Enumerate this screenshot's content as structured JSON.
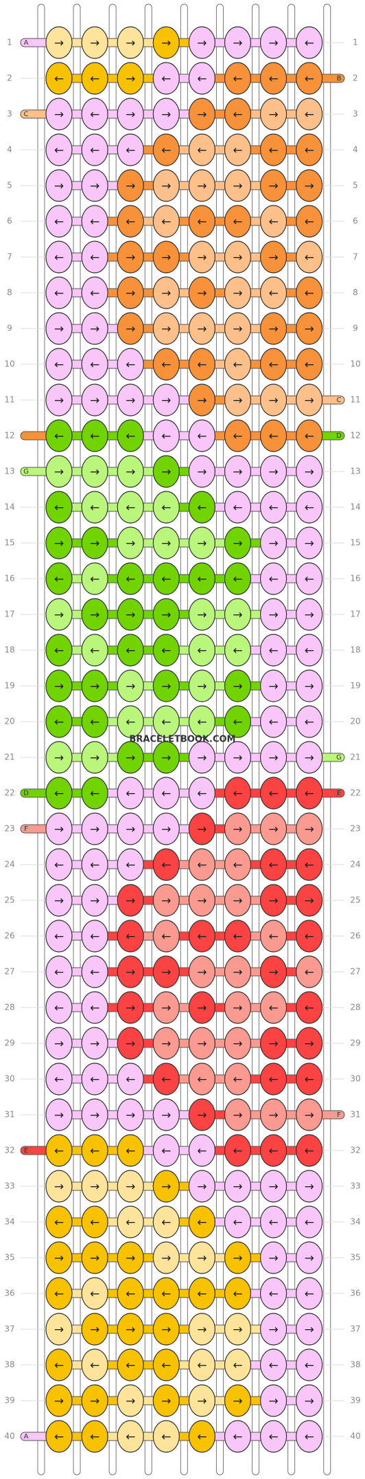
{
  "palette": {
    "p": "#f9c6f9",
    "do": "#f7923a",
    "lo": "#fdc08b",
    "dy": "#f9c200",
    "ly": "#fde49a",
    "dg": "#71d300",
    "lg": "#baf57c",
    "dr": "#fb4343",
    "lr": "#fb9a90"
  },
  "watermark": "BRACELETBOOK.COM",
  "tags": [
    {
      "row": 1,
      "side": "left",
      "letter": "A",
      "color": "p"
    },
    {
      "row": 3,
      "side": "left",
      "letter": "C",
      "color": "lo"
    },
    {
      "row": 12,
      "side": "left",
      "color": "do"
    },
    {
      "row": 13,
      "side": "left",
      "letter": "G",
      "color": "lg"
    },
    {
      "row": 22,
      "side": "left",
      "letter": "D",
      "color": "dg"
    },
    {
      "row": 23,
      "side": "left",
      "letter": "F",
      "color": "lr"
    },
    {
      "row": 32,
      "side": "left",
      "letter": "E",
      "color": "dr"
    },
    {
      "row": 40,
      "side": "left",
      "letter": "A",
      "color": "p"
    },
    {
      "row": 2,
      "side": "right",
      "letter": "B",
      "color": "do"
    },
    {
      "row": 11,
      "side": "right",
      "letter": "C",
      "color": "lo"
    },
    {
      "row": 12,
      "side": "right",
      "letter": "D",
      "color": "dg"
    },
    {
      "row": 21,
      "side": "right",
      "letter": "G",
      "color": "lg"
    },
    {
      "row": 22,
      "side": "right",
      "letter": "E",
      "color": "dr"
    },
    {
      "row": 31,
      "side": "right",
      "letter": "F",
      "color": "lr"
    }
  ],
  "rows": [
    {
      "label": "1",
      "colors": [
        "ly",
        "ly",
        "ly",
        "dy",
        "p",
        "p",
        "p",
        "p"
      ],
      "arrows": [
        "→",
        "→",
        "→",
        "→",
        "→",
        "→",
        "→",
        "←"
      ]
    },
    {
      "label": "2",
      "colors": [
        "dy",
        "dy",
        "dy",
        "p",
        "p",
        "do",
        "do",
        "do"
      ],
      "arrows": [
        "←",
        "←",
        "→",
        "←",
        "←",
        "←",
        "←",
        "←"
      ]
    },
    {
      "label": "3",
      "colors": [
        "p",
        "p",
        "p",
        "p",
        "do",
        "do",
        "lo",
        "lo"
      ],
      "arrows": [
        "→",
        "←",
        "→",
        "→",
        "→",
        "←",
        "→",
        "←"
      ]
    },
    {
      "label": "4",
      "colors": [
        "p",
        "p",
        "p",
        "do",
        "lo",
        "lo",
        "do",
        "do"
      ],
      "arrows": [
        "←",
        "←",
        "←",
        "←",
        "←",
        "←",
        "←",
        "←"
      ]
    },
    {
      "label": "5",
      "colors": [
        "p",
        "p",
        "do",
        "lo",
        "lo",
        "lo",
        "do",
        "do"
      ],
      "arrows": [
        "→",
        "→",
        "→",
        "→",
        "→",
        "→",
        "→",
        "→"
      ]
    },
    {
      "label": "6",
      "colors": [
        "p",
        "p",
        "do",
        "lo",
        "do",
        "do",
        "lo",
        "do"
      ],
      "arrows": [
        "←",
        "←",
        "←",
        "←",
        "←",
        "←",
        "←",
        "←"
      ]
    },
    {
      "label": "7",
      "colors": [
        "p",
        "p",
        "do",
        "do",
        "lo",
        "lo",
        "do",
        "lo"
      ],
      "arrows": [
        "←",
        "←",
        "→",
        "→",
        "→",
        "→",
        "→",
        "←"
      ]
    },
    {
      "label": "8",
      "colors": [
        "p",
        "p",
        "do",
        "lo",
        "do",
        "lo",
        "lo",
        "do"
      ],
      "arrows": [
        "←",
        "←",
        "→",
        "→",
        "→",
        "→",
        "←",
        "←"
      ]
    },
    {
      "label": "9",
      "colors": [
        "p",
        "p",
        "do",
        "lo",
        "lo",
        "lo",
        "do",
        "do"
      ],
      "arrows": [
        "→",
        "→",
        "→",
        "→",
        "→",
        "→",
        "→",
        "→"
      ]
    },
    {
      "label": "10",
      "colors": [
        "p",
        "p",
        "p",
        "do",
        "do",
        "lo",
        "do",
        "do"
      ],
      "arrows": [
        "←",
        "←",
        "←",
        "←",
        "←",
        "←",
        "←",
        "←"
      ]
    },
    {
      "label": "11",
      "colors": [
        "p",
        "p",
        "p",
        "p",
        "do",
        "lo",
        "lo",
        "lo"
      ],
      "arrows": [
        "→",
        "→",
        "→",
        "→",
        "→",
        "→",
        "→",
        "→"
      ]
    },
    {
      "label": "12",
      "colors": [
        "dg",
        "dg",
        "dg",
        "p",
        "p",
        "do",
        "do",
        "do"
      ],
      "arrows": [
        "←",
        "←",
        "←",
        "←",
        "←",
        "←",
        "←",
        "←"
      ]
    },
    {
      "label": "13",
      "colors": [
        "lg",
        "lg",
        "lg",
        "dg",
        "p",
        "p",
        "p",
        "p"
      ],
      "arrows": [
        "→",
        "→",
        "→",
        "→",
        "→",
        "→",
        "→",
        "→"
      ]
    },
    {
      "label": "14",
      "colors": [
        "dg",
        "lg",
        "lg",
        "lg",
        "dg",
        "p",
        "p",
        "p"
      ],
      "arrows": [
        "←",
        "←",
        "←",
        "←",
        "←",
        "←",
        "←",
        "←"
      ]
    },
    {
      "label": "15",
      "colors": [
        "dg",
        "dg",
        "lg",
        "lg",
        "lg",
        "dg",
        "p",
        "p"
      ],
      "arrows": [
        "→",
        "→",
        "→",
        "→",
        "→",
        "→",
        "→",
        "→"
      ]
    },
    {
      "label": "16",
      "colors": [
        "dg",
        "lg",
        "dg",
        "dg",
        "dg",
        "dg",
        "p",
        "p"
      ],
      "arrows": [
        "←",
        "←",
        "←",
        "←",
        "←",
        "←",
        "←",
        "←"
      ]
    },
    {
      "label": "17",
      "colors": [
        "lg",
        "dg",
        "dg",
        "dg",
        "lg",
        "lg",
        "p",
        "p"
      ],
      "arrows": [
        "→",
        "→",
        "→",
        "→",
        "→",
        "→",
        "→",
        "→"
      ]
    },
    {
      "label": "18",
      "colors": [
        "dg",
        "lg",
        "dg",
        "dg",
        "lg",
        "lg",
        "p",
        "p"
      ],
      "arrows": [
        "←",
        "←",
        "←",
        "←",
        "←",
        "←",
        "←",
        "←"
      ]
    },
    {
      "label": "19",
      "colors": [
        "dg",
        "dg",
        "lg",
        "dg",
        "lg",
        "dg",
        "p",
        "p"
      ],
      "arrows": [
        "→",
        "→",
        "→",
        "→",
        "→",
        "→",
        "→",
        "→"
      ]
    },
    {
      "label": "20",
      "colors": [
        "dg",
        "dg",
        "lg",
        "lg",
        "lg",
        "dg",
        "p",
        "p"
      ],
      "arrows": [
        "←",
        "←",
        "←",
        "←",
        "←",
        "←",
        "←",
        "←"
      ]
    },
    {
      "label": "21",
      "colors": [
        "lg",
        "lg",
        "dg",
        "dg",
        "p",
        "p",
        "p",
        "p"
      ],
      "arrows": [
        "→",
        "→",
        "→",
        "→",
        "→",
        "→",
        "→",
        "→"
      ]
    },
    {
      "label": "22",
      "colors": [
        "dg",
        "dg",
        "p",
        "p",
        "p",
        "dr",
        "dr",
        "dr"
      ],
      "arrows": [
        "←",
        "←",
        "←",
        "←",
        "←",
        "←",
        "←",
        "←"
      ]
    },
    {
      "label": "23",
      "colors": [
        "p",
        "p",
        "p",
        "p",
        "dr",
        "lr",
        "lr",
        "lr"
      ],
      "arrows": [
        "→",
        "→",
        "→",
        "→",
        "→",
        "→",
        "→",
        "→"
      ]
    },
    {
      "label": "24",
      "colors": [
        "p",
        "p",
        "p",
        "dr",
        "lr",
        "lr",
        "dr",
        "dr"
      ],
      "arrows": [
        "←",
        "←",
        "←",
        "←",
        "←",
        "←",
        "←",
        "←"
      ]
    },
    {
      "label": "25",
      "colors": [
        "p",
        "p",
        "dr",
        "lr",
        "lr",
        "lr",
        "dr",
        "dr"
      ],
      "arrows": [
        "→",
        "→",
        "→",
        "→",
        "→",
        "→",
        "→",
        "→"
      ]
    },
    {
      "label": "26",
      "colors": [
        "p",
        "p",
        "dr",
        "lr",
        "dr",
        "dr",
        "lr",
        "dr"
      ],
      "arrows": [
        "←",
        "←",
        "←",
        "←",
        "←",
        "←",
        "←",
        "←"
      ]
    },
    {
      "label": "27",
      "colors": [
        "p",
        "p",
        "dr",
        "dr",
        "lr",
        "lr",
        "dr",
        "lr"
      ],
      "arrows": [
        "←",
        "←",
        "→",
        "→",
        "→",
        "→",
        "→",
        "←"
      ]
    },
    {
      "label": "28",
      "colors": [
        "p",
        "p",
        "dr",
        "lr",
        "dr",
        "lr",
        "lr",
        "dr"
      ],
      "arrows": [
        "←",
        "←",
        "→",
        "→",
        "→",
        "→",
        "←",
        "←"
      ]
    },
    {
      "label": "29",
      "colors": [
        "p",
        "p",
        "dr",
        "lr",
        "lr",
        "lr",
        "dr",
        "dr"
      ],
      "arrows": [
        "→",
        "→",
        "→",
        "→",
        "→",
        "→",
        "→",
        "→"
      ]
    },
    {
      "label": "30",
      "colors": [
        "p",
        "p",
        "p",
        "dr",
        "lr",
        "lr",
        "dr",
        "dr"
      ],
      "arrows": [
        "←",
        "←",
        "←",
        "←",
        "←",
        "←",
        "←",
        "←"
      ]
    },
    {
      "label": "31",
      "colors": [
        "p",
        "p",
        "p",
        "p",
        "dr",
        "lr",
        "lr",
        "lr"
      ],
      "arrows": [
        "→",
        "→",
        "→",
        "→",
        "→",
        "→",
        "→",
        "→"
      ]
    },
    {
      "label": "32",
      "colors": [
        "dy",
        "dy",
        "dy",
        "p",
        "p",
        "dr",
        "dr",
        "dr"
      ],
      "arrows": [
        "←",
        "←",
        "←",
        "←",
        "←",
        "←",
        "←",
        "←"
      ]
    },
    {
      "label": "33",
      "colors": [
        "ly",
        "ly",
        "ly",
        "dy",
        "p",
        "p",
        "p",
        "p"
      ],
      "arrows": [
        "→",
        "→",
        "→",
        "→",
        "→",
        "→",
        "→",
        "→"
      ]
    },
    {
      "label": "34",
      "colors": [
        "dy",
        "dy",
        "ly",
        "ly",
        "dy",
        "p",
        "p",
        "p"
      ],
      "arrows": [
        "←",
        "←",
        "←",
        "←",
        "←",
        "←",
        "←",
        "←"
      ]
    },
    {
      "label": "35",
      "colors": [
        "dy",
        "dy",
        "dy",
        "ly",
        "ly",
        "dy",
        "p",
        "p"
      ],
      "arrows": [
        "→",
        "→",
        "→",
        "→",
        "→",
        "→",
        "→",
        "→"
      ]
    },
    {
      "label": "36",
      "colors": [
        "dy",
        "ly",
        "dy",
        "dy",
        "dy",
        "dy",
        "p",
        "p"
      ],
      "arrows": [
        "←",
        "←",
        "←",
        "←",
        "←",
        "←",
        "←",
        "←"
      ]
    },
    {
      "label": "37",
      "colors": [
        "ly",
        "dy",
        "dy",
        "dy",
        "ly",
        "ly",
        "p",
        "p"
      ],
      "arrows": [
        "→",
        "→",
        "→",
        "→",
        "→",
        "→",
        "→",
        "→"
      ]
    },
    {
      "label": "38",
      "colors": [
        "dy",
        "ly",
        "dy",
        "dy",
        "ly",
        "ly",
        "p",
        "p"
      ],
      "arrows": [
        "←",
        "←",
        "←",
        "←",
        "←",
        "←",
        "←",
        "←"
      ]
    },
    {
      "label": "39",
      "colors": [
        "dy",
        "dy",
        "ly",
        "dy",
        "ly",
        "dy",
        "p",
        "p"
      ],
      "arrows": [
        "→",
        "→",
        "→",
        "→",
        "→",
        "→",
        "→",
        "→"
      ]
    },
    {
      "label": "40",
      "colors": [
        "dy",
        "dy",
        "ly",
        "ly",
        "dy",
        "p",
        "p",
        "p"
      ],
      "arrows": [
        "←",
        "←",
        "←",
        "←",
        "←",
        "←",
        "←",
        "←"
      ]
    }
  ]
}
